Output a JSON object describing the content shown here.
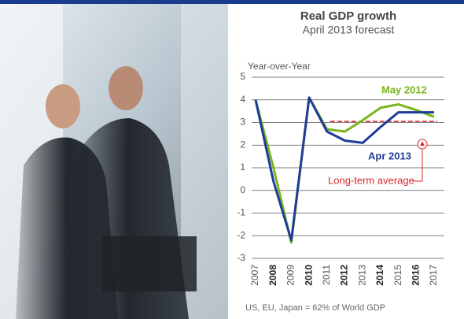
{
  "chart_data": {
    "type": "line",
    "title": "Real GDP growth",
    "subtitle": "April 2013 forecast",
    "y_label": "Year-over-Year",
    "footnote": "US, EU, Japan = 62% of World GDP",
    "categories": [
      "2007",
      "2008",
      "2009",
      "2010",
      "2011",
      "2012",
      "2013",
      "2014",
      "2015",
      "2016",
      "2017"
    ],
    "series": [
      {
        "name": "May 2012",
        "color": "#7ab51d",
        "values": [
          4.0,
          1.0,
          -2.3,
          4.1,
          2.7,
          2.6,
          3.1,
          3.65,
          3.8,
          3.55,
          3.25
        ]
      },
      {
        "name": "Apr 2013",
        "color": "#1f3c99",
        "values": [
          4.0,
          0.4,
          -2.2,
          4.1,
          2.6,
          2.2,
          2.1,
          2.8,
          3.45,
          3.45,
          3.45
        ]
      }
    ],
    "long_term_average": {
      "label": "Long-term average",
      "value": 3.05,
      "color": "#d9262e"
    },
    "ylim": [
      -3,
      5
    ],
    "yticks": [
      -3,
      -2,
      -1,
      0,
      1,
      2,
      3,
      4,
      5
    ],
    "grid": true
  }
}
